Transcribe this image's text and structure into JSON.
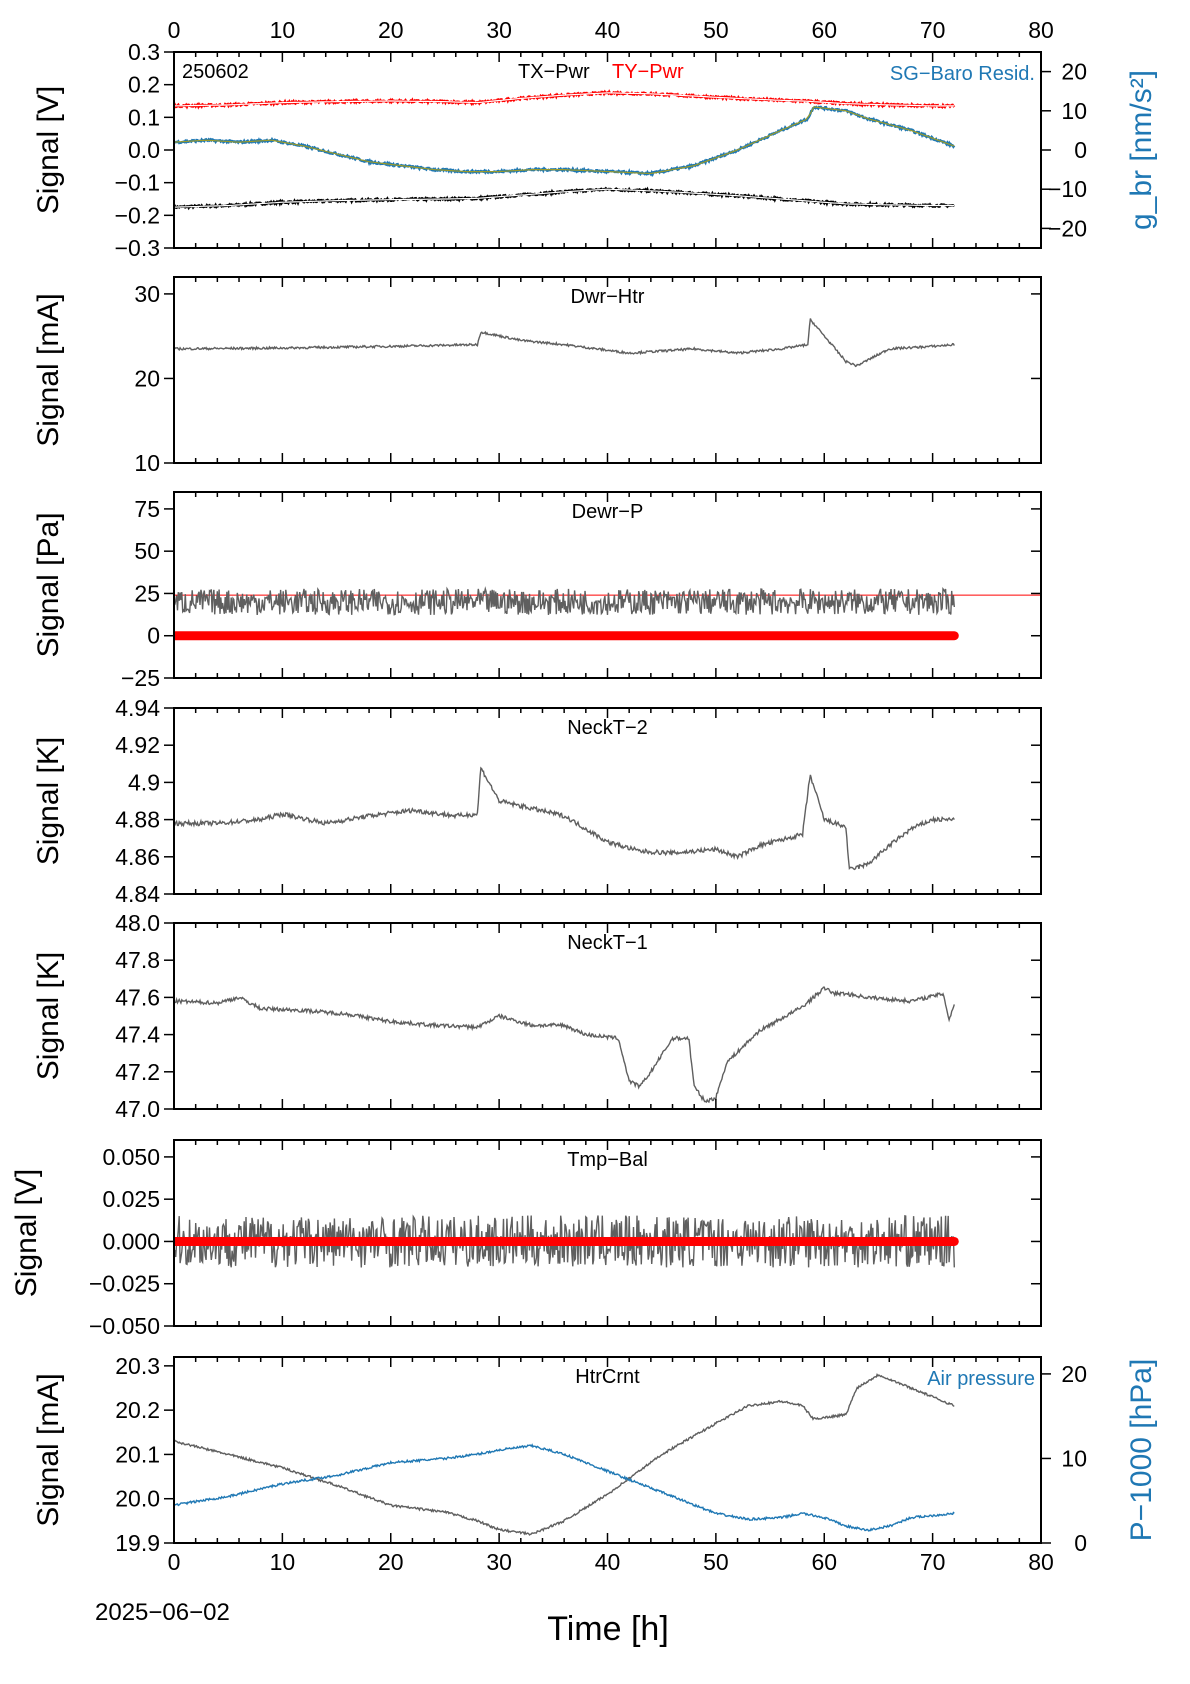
{
  "figure": {
    "date_label": "2025−06−02",
    "x_axis_label": "Time [h]",
    "x_ticks": [
      0,
      10,
      20,
      30,
      40,
      50,
      60,
      70,
      80
    ],
    "x_range": [
      0,
      80
    ]
  },
  "colors": {
    "gray": "#5f5f5f",
    "red": "#ff0000",
    "blue": "#1f78b4",
    "black": "#000000",
    "olive": "#9a9a2a"
  },
  "chart_data": [
    {
      "type": "line",
      "panel_label": "250602",
      "ylabel": "Signal [V]",
      "ylim": [
        -0.3,
        0.3
      ],
      "yticks": [
        -0.3,
        -0.2,
        -0.1,
        0.0,
        0.1,
        0.2,
        0.3
      ],
      "ytick_labels": [
        "−0.3",
        "−0.2",
        "−0.1",
        "0.0",
        "0.1",
        "0.2",
        "0.3"
      ],
      "y2label": "g_br [nm/s²]",
      "y2lim": [
        -25,
        25
      ],
      "y2ticks": [
        -20,
        -10,
        0,
        10,
        20
      ],
      "y2tick_labels": [
        "−20",
        "−10",
        "0",
        "10",
        "20"
      ],
      "legend": [
        "TX−Pwr",
        "TY−Pwr",
        "SG−Baro Resid."
      ],
      "series": [
        {
          "name": "TX−Pwr",
          "color": "#000000",
          "x": [
            0,
            5,
            10,
            15,
            20,
            25,
            28,
            32,
            36,
            40,
            44,
            48,
            52,
            56,
            58,
            62,
            66,
            70,
            72
          ],
          "values": [
            -0.175,
            -0.17,
            -0.16,
            -0.155,
            -0.152,
            -0.15,
            -0.148,
            -0.138,
            -0.128,
            -0.12,
            -0.125,
            -0.132,
            -0.14,
            -0.15,
            -0.155,
            -0.165,
            -0.168,
            -0.17,
            -0.17
          ]
        },
        {
          "name": "TY−Pwr",
          "color": "#ff0000",
          "x": [
            0,
            5,
            10,
            15,
            20,
            25,
            28,
            32,
            36,
            40,
            44,
            48,
            52,
            56,
            58,
            62,
            66,
            70,
            72
          ],
          "values": [
            0.135,
            0.138,
            0.145,
            0.148,
            0.15,
            0.148,
            0.145,
            0.158,
            0.168,
            0.175,
            0.172,
            0.165,
            0.158,
            0.152,
            0.15,
            0.142,
            0.138,
            0.135,
            0.135
          ]
        },
        {
          "name": "SG−Baro Resid.",
          "axis": "right",
          "color": "#1f78b4",
          "x": [
            0,
            3,
            6,
            9,
            12,
            15,
            18,
            21,
            24,
            27,
            30,
            33,
            36,
            40,
            44,
            48,
            52,
            56,
            58.5,
            59,
            62,
            64,
            68,
            72
          ],
          "values": [
            2,
            2.5,
            2,
            2.5,
            1,
            -1,
            -3,
            -4,
            -5,
            -5.5,
            -5.5,
            -5,
            -5,
            -5.5,
            -6,
            -4,
            0,
            5,
            8,
            11,
            10,
            8,
            5,
            1
          ]
        }
      ]
    },
    {
      "type": "line",
      "panel_label": "Dwr−Htr",
      "ylabel": "Signal [mA]",
      "ylim": [
        10,
        32
      ],
      "yticks": [
        10,
        20,
        30
      ],
      "series": [
        {
          "name": "Dwr−Htr",
          "color": "#5f5f5f",
          "x": [
            0,
            10,
            20,
            28,
            28.3,
            32,
            36,
            42,
            48,
            52,
            56,
            58.5,
            58.7,
            62,
            63,
            66,
            70,
            72
          ],
          "values": [
            23.5,
            23.6,
            23.8,
            24,
            25.5,
            24.5,
            24,
            23,
            23.5,
            23,
            23.5,
            24,
            27,
            22,
            21.5,
            23.5,
            23.8,
            24
          ]
        }
      ]
    },
    {
      "type": "line",
      "panel_label": "Dewr−P",
      "ylabel": "Signal [Pa]",
      "ylim": [
        -25,
        85
      ],
      "yticks": [
        -25,
        0,
        25,
        50,
        75
      ],
      "series": [
        {
          "name": "Dewr−P",
          "color": "#5f5f5f",
          "x": [
            0,
            72
          ],
          "values": [
            20,
            20
          ]
        },
        {
          "color": "#ff0000",
          "x": [
            0,
            72
          ],
          "values": [
            0,
            0
          ]
        }
      ],
      "reference_line": 24
    },
    {
      "type": "line",
      "panel_label": "NeckT−2",
      "ylabel": "Signal [K]",
      "ylim": [
        4.84,
        4.94
      ],
      "yticks": [
        4.84,
        4.86,
        4.88,
        4.9,
        4.92,
        4.94
      ],
      "series": [
        {
          "name": "NeckT−2",
          "color": "#5f5f5f",
          "x": [
            0,
            4,
            8,
            10,
            14,
            18,
            22,
            26,
            28,
            28.3,
            30,
            33,
            36,
            38,
            40,
            43,
            46,
            50,
            52,
            54,
            58,
            58.7,
            60,
            62,
            62.3,
            64,
            66,
            68,
            70,
            72
          ],
          "values": [
            4.878,
            4.878,
            4.88,
            4.883,
            4.878,
            4.882,
            4.885,
            4.882,
            4.883,
            4.908,
            4.89,
            4.886,
            4.882,
            4.875,
            4.868,
            4.863,
            4.862,
            4.864,
            4.86,
            4.866,
            4.872,
            4.904,
            4.88,
            4.876,
            4.853,
            4.856,
            4.866,
            4.875,
            4.88,
            4.88
          ]
        }
      ]
    },
    {
      "type": "line",
      "panel_label": "NeckT−1",
      "ylabel": "Signal [K]",
      "ylim": [
        47.0,
        48.0
      ],
      "yticks": [
        47.0,
        47.2,
        47.4,
        47.6,
        47.8,
        48.0
      ],
      "ytick_labels": [
        "47.0",
        "47.2",
        "47.4",
        "47.6",
        "47.8",
        "48.0"
      ],
      "series": [
        {
          "name": "NeckT−1",
          "color": "#5f5f5f",
          "x": [
            0,
            4,
            6,
            8,
            12,
            16,
            20,
            24,
            28,
            30,
            33,
            36,
            38,
            41,
            42,
            43,
            44,
            46,
            47.5,
            48,
            49,
            50,
            51,
            54,
            58,
            60,
            61,
            62,
            64,
            68,
            71,
            71.5,
            72
          ],
          "values": [
            47.58,
            47.57,
            47.6,
            47.54,
            47.53,
            47.51,
            47.47,
            47.45,
            47.44,
            47.5,
            47.45,
            47.45,
            47.4,
            47.38,
            47.15,
            47.12,
            47.2,
            47.38,
            47.38,
            47.12,
            47.04,
            47.06,
            47.25,
            47.42,
            47.55,
            47.65,
            47.62,
            47.62,
            47.6,
            47.58,
            47.62,
            47.48,
            47.56
          ]
        }
      ]
    },
    {
      "type": "line",
      "panel_label": "Tmp−Bal",
      "ylabel": "Signal [V]",
      "ylim": [
        -0.05,
        0.06
      ],
      "yticks": [
        -0.05,
        -0.025,
        0.0,
        0.025,
        0.05
      ],
      "ytick_labels": [
        "−0.050",
        "−0.025",
        "0.000",
        "0.025",
        "0.050"
      ],
      "series": [
        {
          "name": "Tmp−Bal",
          "color": "#5f5f5f",
          "x": [
            0,
            72
          ],
          "values": [
            0,
            0
          ]
        },
        {
          "color": "#ff0000",
          "x": [
            0,
            72
          ],
          "values": [
            0,
            0
          ]
        }
      ]
    },
    {
      "type": "line",
      "panel_label": "HtrCrnt",
      "ylabel": "Signal [mA]",
      "ylim": [
        19.9,
        20.32
      ],
      "yticks": [
        19.9,
        20.0,
        20.1,
        20.2,
        20.3
      ],
      "ytick_labels": [
        "19.9",
        "20.0",
        "20.1",
        "20.2",
        "20.3"
      ],
      "y2label": "P−1000 [hPa]",
      "y2lim": [
        0,
        22
      ],
      "y2ticks": [
        0,
        10,
        20
      ],
      "legend": [
        "Air pressure"
      ],
      "series": [
        {
          "name": "HtrCrnt",
          "color": "#5f5f5f",
          "x": [
            0,
            5,
            10,
            15,
            20,
            25,
            28,
            30,
            33,
            36,
            40,
            45,
            50,
            53,
            56,
            58,
            59,
            62,
            63,
            65,
            68,
            72
          ],
          "values": [
            20.13,
            20.1,
            20.07,
            20.03,
            19.985,
            19.97,
            19.95,
            19.93,
            19.92,
            19.95,
            20.01,
            20.1,
            20.17,
            20.21,
            20.22,
            20.21,
            20.18,
            20.19,
            20.25,
            20.28,
            20.25,
            20.21
          ]
        },
        {
          "name": "Air pressure",
          "axis": "right",
          "color": "#1f78b4",
          "x": [
            0,
            5,
            10,
            15,
            20,
            25,
            28,
            30,
            33,
            36,
            40,
            45,
            50,
            53,
            56,
            58,
            60,
            62,
            64,
            66,
            68,
            72
          ],
          "values": [
            4.5,
            5.5,
            7,
            8,
            9.5,
            10,
            10.5,
            11,
            11.5,
            10.5,
            8.5,
            6,
            3.5,
            2.8,
            3,
            3.5,
            3,
            2,
            1.5,
            2,
            3,
            3.5
          ]
        }
      ]
    }
  ]
}
